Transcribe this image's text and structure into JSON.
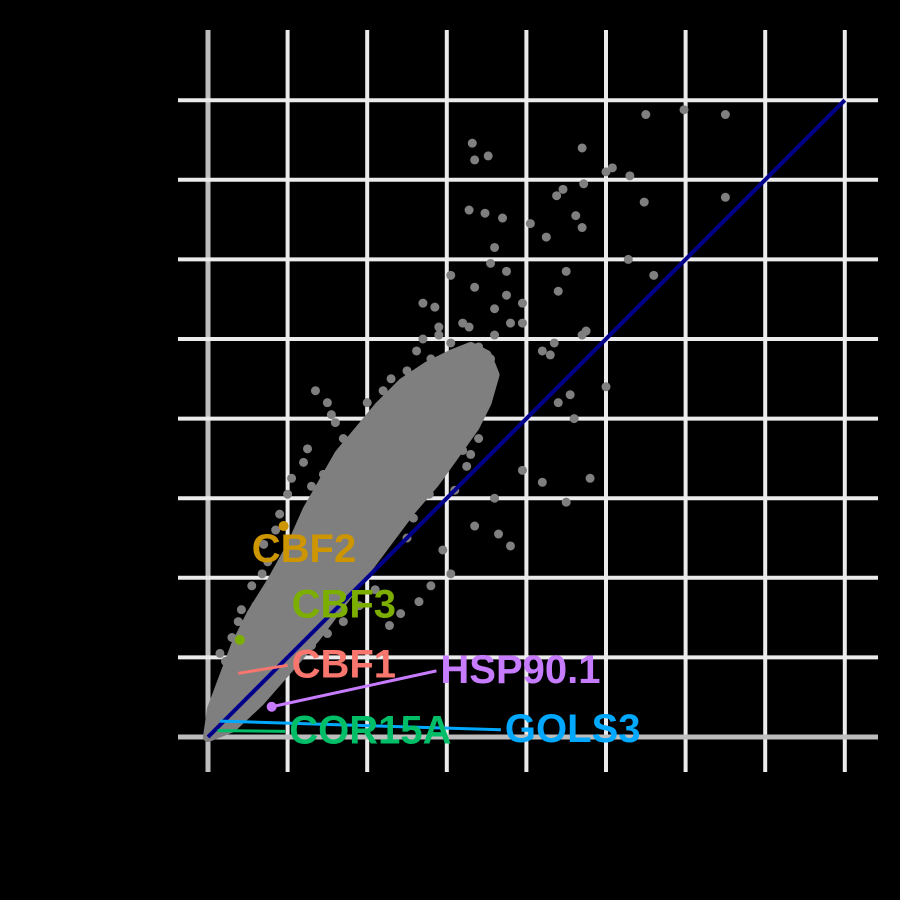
{
  "chart_data": {
    "type": "scatter",
    "title": "",
    "xlabel": "",
    "ylabel": "",
    "xlim": [
      0,
      8
    ],
    "ylim": [
      0,
      8
    ],
    "grid": true,
    "background": "#000000",
    "colors": {
      "grid": "#ebebeb",
      "zero_line": "#bdbdbd",
      "points": "#7f7f7f",
      "diagonal": "#00008b"
    },
    "diagonal": {
      "from": [
        0,
        0
      ],
      "to": [
        8,
        8
      ]
    },
    "highlight_points": [
      {
        "x": 0.95,
        "y": 2.65,
        "color": "#cd9600"
      },
      {
        "x": 0.4,
        "y": 1.22,
        "color": "#7cae00"
      },
      {
        "x": 0.8,
        "y": 0.38,
        "color": "#c77cff"
      }
    ],
    "labels": [
      {
        "text": "CBF2",
        "x": 0.55,
        "y": 2.2,
        "color": "#cd9600"
      },
      {
        "text": "CBF3",
        "x": 1.05,
        "y": 1.5,
        "color": "#7cae00"
      },
      {
        "text": "CBF1",
        "x": 1.05,
        "y": 0.75,
        "color": "#f8766d",
        "leader": {
          "x": 0.38,
          "y": 0.8
        }
      },
      {
        "text": "HSP90.1",
        "x": 2.92,
        "y": 0.68,
        "color": "#c77cff",
        "leader": {
          "x": 0.8,
          "y": 0.38
        }
      },
      {
        "text": "COR15A",
        "x": 1.02,
        "y": -0.08,
        "color": "#00be67",
        "leader": {
          "x": 0.12,
          "y": 0.08
        }
      },
      {
        "text": "GOLS3",
        "x": 3.73,
        "y": -0.06,
        "color": "#00a9ff",
        "leader": {
          "x": 0.15,
          "y": 0.2
        }
      }
    ],
    "series": [
      {
        "color": "#7f7f7f",
        "points": [
          [
            5.98,
            7.88
          ],
          [
            5.5,
            7.82
          ],
          [
            6.5,
            7.82
          ],
          [
            3.32,
            7.46
          ],
          [
            3.35,
            7.25
          ],
          [
            3.52,
            7.3
          ],
          [
            4.7,
            7.4
          ],
          [
            5.0,
            7.1
          ],
          [
            5.08,
            7.15
          ],
          [
            5.3,
            7.05
          ],
          [
            4.72,
            6.95
          ],
          [
            4.46,
            6.88
          ],
          [
            4.38,
            6.8
          ],
          [
            6.5,
            6.78
          ],
          [
            5.48,
            6.72
          ],
          [
            3.28,
            6.62
          ],
          [
            3.48,
            6.58
          ],
          [
            3.7,
            6.52
          ],
          [
            4.05,
            6.45
          ],
          [
            4.62,
            6.55
          ],
          [
            4.7,
            6.4
          ],
          [
            4.25,
            6.28
          ],
          [
            3.6,
            6.15
          ],
          [
            5.28,
            6.0
          ],
          [
            3.55,
            5.95
          ],
          [
            3.75,
            5.85
          ],
          [
            4.5,
            5.85
          ],
          [
            5.6,
            5.8
          ],
          [
            3.75,
            5.55
          ],
          [
            3.95,
            5.45
          ],
          [
            4.4,
            5.6
          ],
          [
            4.7,
            5.05
          ],
          [
            4.75,
            5.1
          ],
          [
            4.35,
            4.95
          ],
          [
            4.2,
            4.85
          ],
          [
            3.05,
            5.8
          ],
          [
            3.35,
            5.65
          ],
          [
            2.85,
            5.4
          ],
          [
            2.7,
            5.45
          ],
          [
            3.95,
            5.2
          ],
          [
            4.3,
            4.8
          ],
          [
            4.4,
            4.2
          ],
          [
            4.55,
            4.3
          ],
          [
            5.0,
            4.4
          ],
          [
            4.6,
            4.0
          ],
          [
            3.95,
            3.35
          ],
          [
            3.3,
            3.55
          ],
          [
            3.1,
            3.1
          ],
          [
            4.2,
            3.2
          ],
          [
            3.6,
            3.0
          ],
          [
            4.5,
            2.95
          ],
          [
            4.8,
            3.25
          ],
          [
            2.78,
            3.05
          ],
          [
            2.58,
            2.75
          ],
          [
            2.5,
            2.5
          ],
          [
            2.95,
            2.35
          ],
          [
            3.35,
            2.65
          ],
          [
            3.8,
            2.4
          ],
          [
            2.8,
            1.9
          ],
          [
            2.65,
            1.7
          ],
          [
            2.42,
            1.55
          ],
          [
            2.28,
            1.4
          ],
          [
            3.05,
            2.05
          ],
          [
            3.65,
            2.55
          ],
          [
            3.25,
            3.4
          ],
          [
            2.6,
            3.3
          ],
          [
            2.45,
            3.25
          ],
          [
            2.35,
            3.6
          ],
          [
            2.65,
            3.95
          ],
          [
            2.58,
            4.35
          ],
          [
            2.2,
            4.35
          ],
          [
            2.0,
            4.2
          ],
          [
            2.1,
            4.0
          ],
          [
            2.05,
            3.75
          ],
          [
            1.88,
            3.55
          ],
          [
            1.8,
            3.4
          ],
          [
            1.7,
            3.75
          ],
          [
            1.6,
            3.95
          ],
          [
            1.55,
            4.05
          ],
          [
            2.5,
            4.6
          ],
          [
            2.3,
            4.5
          ],
          [
            2.8,
            4.75
          ],
          [
            2.62,
            4.85
          ],
          [
            2.9,
            5.05
          ],
          [
            2.7,
            5.0
          ],
          [
            3.2,
            5.2
          ],
          [
            3.28,
            5.15
          ],
          [
            3.6,
            5.38
          ],
          [
            3.8,
            5.2
          ],
          [
            2.9,
            5.15
          ],
          [
            3.05,
            4.95
          ],
          [
            3.05,
            4.6
          ],
          [
            2.95,
            4.25
          ],
          [
            3.15,
            4.7
          ],
          [
            3.4,
            4.9
          ],
          [
            3.55,
            4.75
          ],
          [
            3.6,
            5.05
          ],
          [
            1.35,
            4.35
          ],
          [
            1.5,
            4.2
          ],
          [
            1.2,
            3.45
          ],
          [
            1.3,
            3.15
          ],
          [
            1.45,
            3.3
          ],
          [
            1.25,
            3.62
          ],
          [
            1.05,
            3.25
          ],
          [
            1.0,
            3.05
          ],
          [
            0.9,
            2.8
          ],
          [
            0.85,
            2.6
          ],
          [
            0.75,
            2.2
          ],
          [
            0.7,
            2.42
          ],
          [
            0.68,
            2.05
          ],
          [
            0.55,
            1.9
          ],
          [
            0.6,
            1.65
          ],
          [
            0.42,
            1.6
          ],
          [
            0.38,
            1.45
          ],
          [
            0.3,
            1.25
          ],
          [
            0.15,
            1.05
          ],
          [
            0.22,
            0.95
          ],
          [
            0.35,
            0.85
          ],
          [
            0.45,
            0.7
          ],
          [
            0.25,
            0.6
          ],
          [
            0.18,
            0.45
          ],
          [
            0.1,
            0.3
          ],
          [
            0.06,
            0.18
          ],
          [
            0.32,
            0.28
          ],
          [
            0.55,
            0.5
          ],
          [
            0.95,
            0.85
          ],
          [
            1.1,
            1.05
          ],
          [
            1.3,
            1.15
          ],
          [
            1.5,
            1.3
          ],
          [
            1.7,
            1.45
          ],
          [
            1.9,
            1.65
          ],
          [
            2.1,
            1.85
          ],
          [
            0.8,
            1.25
          ],
          [
            1.0,
            1.6
          ],
          [
            1.2,
            1.9
          ],
          [
            1.4,
            2.2
          ],
          [
            1.6,
            2.45
          ],
          [
            1.8,
            2.75
          ],
          [
            2.0,
            3.0
          ],
          [
            2.2,
            3.25
          ],
          [
            2.4,
            3.45
          ],
          [
            2.6,
            3.65
          ],
          [
            2.8,
            3.85
          ],
          [
            3.0,
            4.05
          ],
          [
            1.1,
            2.35
          ],
          [
            1.3,
            2.7
          ],
          [
            1.5,
            2.95
          ],
          [
            0.9,
            1.95
          ],
          [
            0.7,
            1.55
          ],
          [
            0.5,
            1.15
          ],
          [
            1.7,
            3.1
          ],
          [
            2.25,
            2.6
          ],
          [
            2.45,
            2.85
          ],
          [
            2.65,
            3.05
          ],
          [
            2.05,
            2.45
          ],
          [
            1.85,
            2.2
          ],
          [
            1.65,
            1.95
          ],
          [
            1.45,
            1.75
          ],
          [
            1.25,
            1.5
          ],
          [
            1.05,
            1.3
          ],
          [
            0.85,
            1.05
          ],
          [
            3.2,
            3.6
          ],
          [
            3.4,
            3.75
          ],
          [
            3.0,
            3.55
          ],
          [
            2.85,
            3.4
          ],
          [
            3.5,
            4.2
          ],
          [
            3.3,
            4.1
          ],
          [
            3.1,
            4.3
          ],
          [
            0.3,
            0.9
          ],
          [
            0.45,
            1.1
          ],
          [
            0.65,
            1.35
          ],
          [
            0.2,
            0.7
          ],
          [
            0.12,
            0.5
          ]
        ]
      }
    ],
    "cloud": [
      [
        0.0,
        0.0
      ],
      [
        0.05,
        0.35
      ],
      [
        0.2,
        0.75
      ],
      [
        0.35,
        1.15
      ],
      [
        0.55,
        1.55
      ],
      [
        0.8,
        1.95
      ],
      [
        1.05,
        2.4
      ],
      [
        1.25,
        2.85
      ],
      [
        1.45,
        3.2
      ],
      [
        1.65,
        3.55
      ],
      [
        1.9,
        3.85
      ],
      [
        2.15,
        4.15
      ],
      [
        2.45,
        4.45
      ],
      [
        2.75,
        4.65
      ],
      [
        3.05,
        4.8
      ],
      [
        3.3,
        4.9
      ],
      [
        3.5,
        4.8
      ],
      [
        3.6,
        4.55
      ],
      [
        3.5,
        4.2
      ],
      [
        3.35,
        3.9
      ],
      [
        3.1,
        3.55
      ],
      [
        2.85,
        3.2
      ],
      [
        2.55,
        2.85
      ],
      [
        2.25,
        2.45
      ],
      [
        1.95,
        2.05
      ],
      [
        1.65,
        1.65
      ],
      [
        1.35,
        1.25
      ],
      [
        1.0,
        0.85
      ],
      [
        0.65,
        0.45
      ],
      [
        0.3,
        0.12
      ]
    ]
  }
}
